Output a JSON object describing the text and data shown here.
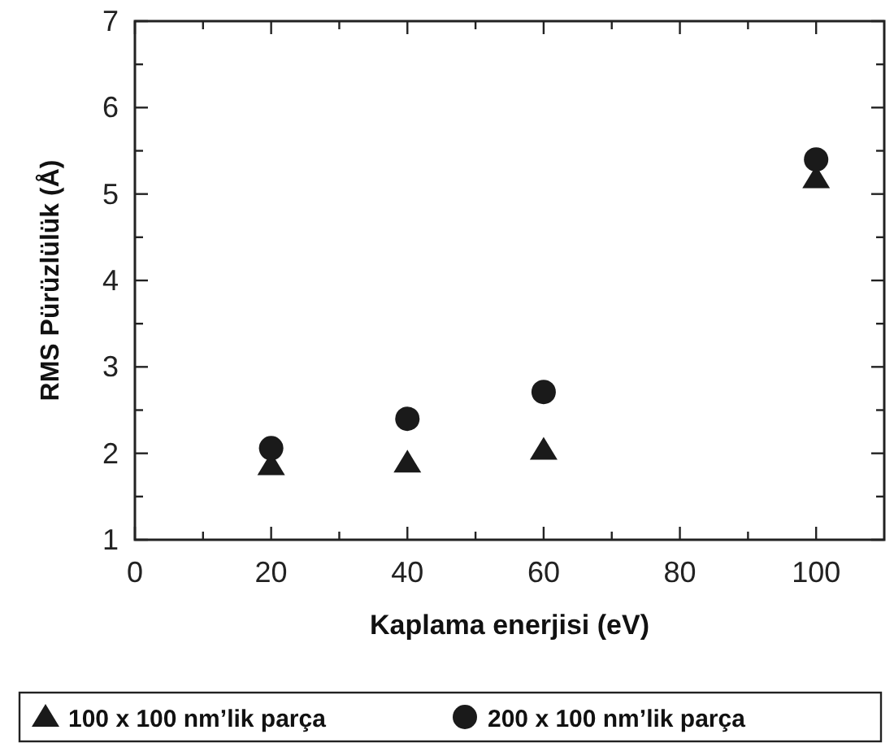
{
  "chart_data": {
    "type": "scatter",
    "xlabel": "Kaplama enerjisi (eV)",
    "ylabel": "RMS Pürüzlülük (Å)",
    "x": [
      20,
      40,
      60,
      100
    ],
    "series": [
      {
        "name": "100 x 100 nm’lik parça",
        "color": "#1a1a1a",
        "marker": "triangle",
        "values": [
          1.86,
          1.89,
          2.04,
          5.18
        ]
      },
      {
        "name": "200 x 100 nm’lik parça",
        "color": "#1a1a1a",
        "marker": "circle",
        "values": [
          2.06,
          2.4,
          2.71,
          5.4
        ]
      }
    ],
    "xlim": [
      0,
      110
    ],
    "xticks": [
      0,
      {
        "value": 10,
        "label": null
      },
      20,
      {
        "value": 30,
        "label": null
      },
      40,
      {
        "value": 50,
        "label": null
      },
      60,
      {
        "value": 70,
        "label": null
      },
      80,
      {
        "value": 90,
        "label": null
      },
      100
    ],
    "ylim": [
      1,
      7
    ],
    "yticks": [
      1,
      {
        "value": 1.5,
        "label": null
      },
      2,
      {
        "value": 2.5,
        "label": null
      },
      3,
      {
        "value": 3.5,
        "label": null
      },
      4,
      {
        "value": 4.5,
        "label": null
      },
      5,
      {
        "value": 5.5,
        "label": null
      },
      6,
      {
        "value": 6.5,
        "label": null
      },
      7
    ],
    "grid": false,
    "legend": "bottom"
  }
}
